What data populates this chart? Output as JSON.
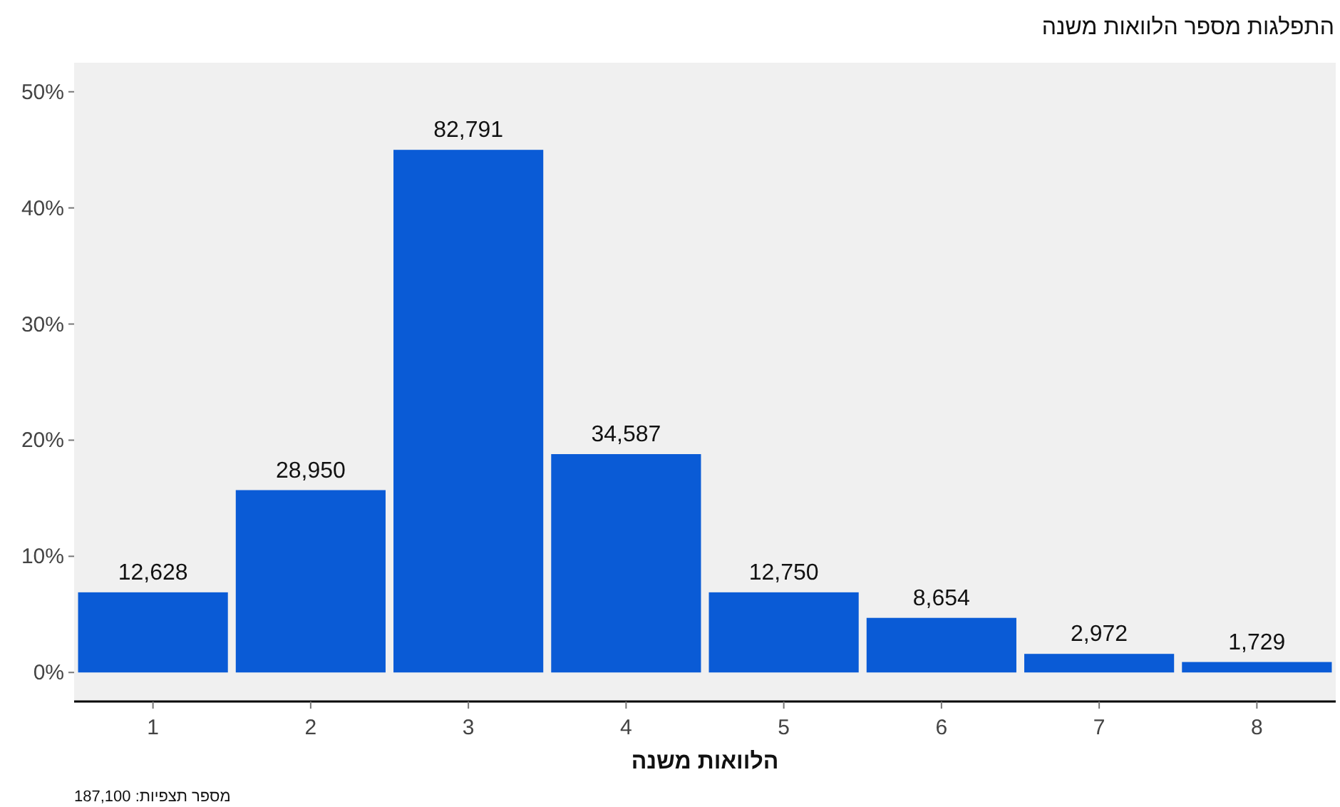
{
  "chart_data": {
    "type": "bar",
    "title": "התפלגות מספר הלוואות משנה",
    "xlabel": "הלוואות משנה",
    "annotations": [
      "מספר תצפיות: 187,100",
      {
        "text": "12,628",
        "x": "1",
        "y": 6.9
      },
      {
        "text": "28,950",
        "x": "2",
        "y": 15.7
      },
      {
        "text": "82,791",
        "x": "3",
        "y": 45.0
      },
      {
        "text": "34,587",
        "x": "4",
        "y": 18.8
      },
      {
        "text": "12,750",
        "x": "5",
        "y": 6.9
      },
      {
        "text": "8,654",
        "x": "6",
        "y": 4.7
      },
      {
        "text": "2,972",
        "x": "7",
        "y": 1.6
      },
      {
        "text": "1,729",
        "x": "8",
        "y": 0.9
      }
    ],
    "categories": [
      "1",
      "2",
      "3",
      "4",
      "5",
      "6",
      "7",
      "8"
    ],
    "values": [
      6.9,
      15.7,
      45.0,
      18.8,
      6.9,
      4.7,
      1.6,
      0.9
    ],
    "color": "#0a5bd6",
    "ylim": [
      -2.5,
      52.5
    ],
    "yticks": [
      {
        "value": 0,
        "label": "0%"
      },
      {
        "value": 10,
        "label": "10%"
      },
      {
        "value": 20,
        "label": "20%"
      },
      {
        "value": 30,
        "label": "30%"
      },
      {
        "value": 40,
        "label": "40%"
      },
      {
        "value": 50,
        "label": "50%"
      }
    ]
  }
}
